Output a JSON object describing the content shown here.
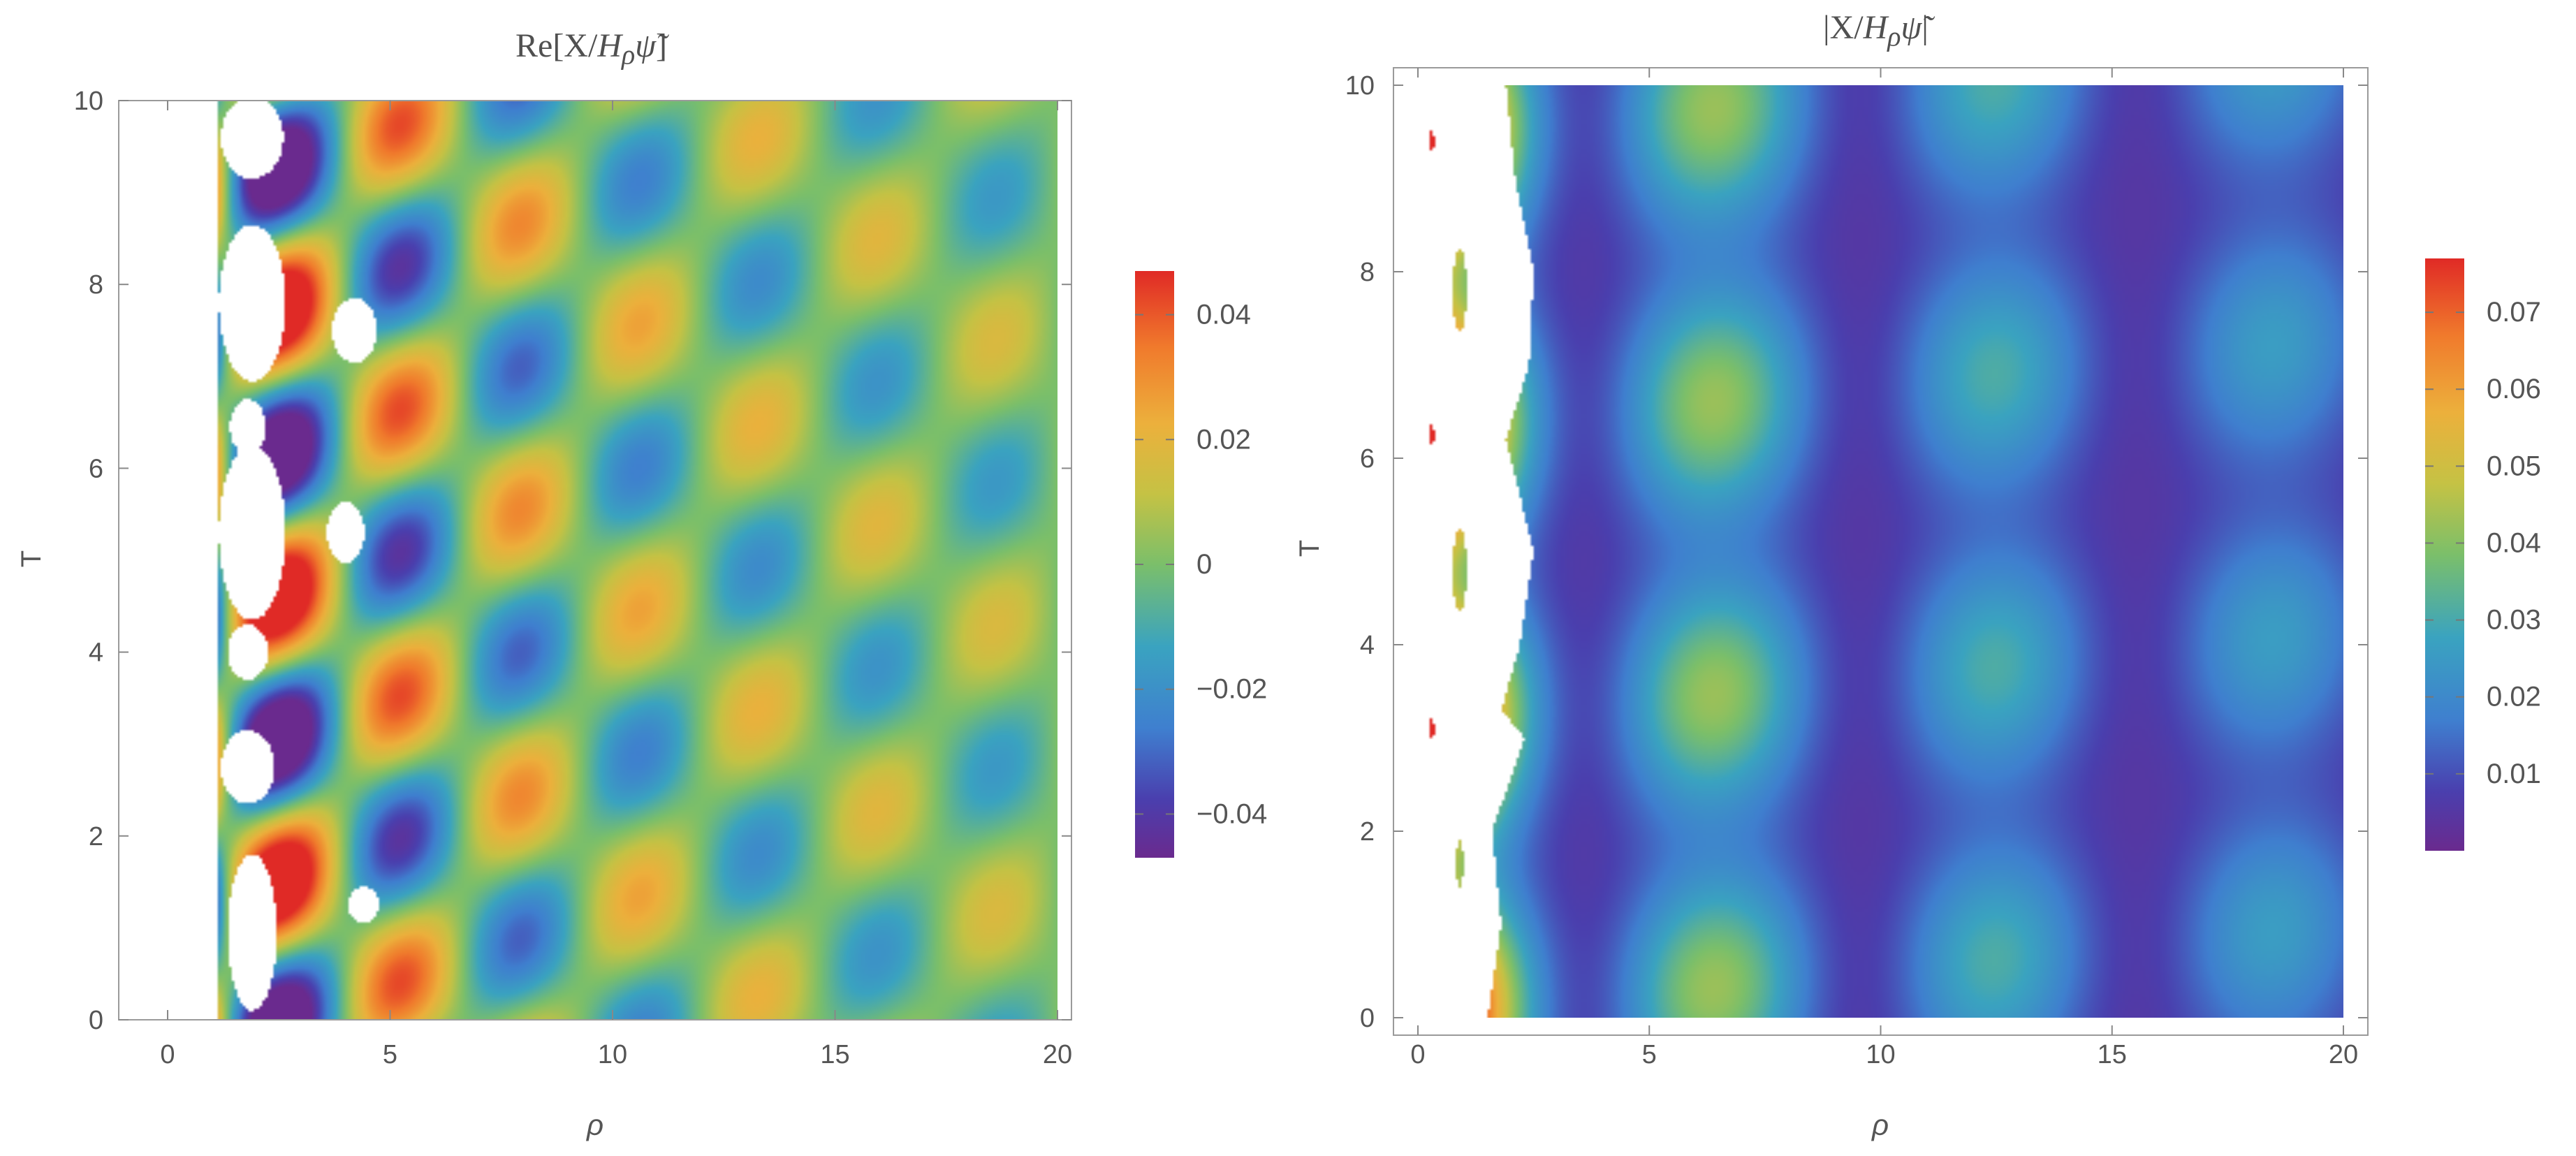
{
  "chart_data": [
    {
      "type": "heatmap",
      "title": {
        "prefix": "Re[X/",
        "H": "H",
        "sub": "ρ",
        "psi": "ψ̃",
        "suffix": "]"
      },
      "xlabel": "ρ",
      "ylabel": "T",
      "xlim": [
        0,
        20
      ],
      "ylim": [
        0,
        10
      ],
      "xticks": [
        0,
        5,
        10,
        15,
        20
      ],
      "yticks": [
        0,
        2,
        4,
        6,
        8,
        10
      ],
      "colorbar": {
        "range": [
          -0.047,
          0.047
        ],
        "ticks": [
          0.04,
          0.02,
          0,
          -0.02,
          -0.04
        ],
        "tick_labels": [
          "0.04",
          "0.02",
          "0",
          "−0.02",
          "−0.04"
        ]
      },
      "field_model": "real part of oscillating wave; values outside colorbar range are blank (white)",
      "blank_regions": [
        {
          "rho": 1.9,
          "T": 0.95,
          "rx": 0.55,
          "rT": 0.85
        },
        {
          "rho": 1.8,
          "T": 2.75,
          "rx": 0.6,
          "rT": 0.4
        },
        {
          "rho": 1.8,
          "T": 4.0,
          "rx": 0.45,
          "rT": 0.3
        },
        {
          "rho": 1.9,
          "T": 5.3,
          "rx": 0.75,
          "rT": 0.95
        },
        {
          "rho": 1.8,
          "T": 6.45,
          "rx": 0.4,
          "rT": 0.3
        },
        {
          "rho": 1.9,
          "T": 7.8,
          "rx": 0.75,
          "rT": 0.85
        },
        {
          "rho": 1.9,
          "T": 9.6,
          "rx": 0.7,
          "rT": 0.45
        },
        {
          "rho": 4.2,
          "T": 7.5,
          "rx": 0.5,
          "rT": 0.35
        },
        {
          "rho": 4.0,
          "T": 5.3,
          "rx": 0.42,
          "rT": 0.33
        },
        {
          "rho": 4.4,
          "T": 1.25,
          "rx": 0.35,
          "rT": 0.2
        }
      ]
    },
    {
      "type": "heatmap",
      "title": {
        "prefix": "|X/",
        "H": "H",
        "sub": "ρ",
        "psi": "ψ̃",
        "suffix": "|"
      },
      "xlabel": "ρ",
      "ylabel": "T",
      "xlim": [
        0,
        20
      ],
      "ylim": [
        0,
        10
      ],
      "xticks": [
        0,
        5,
        10,
        15,
        20
      ],
      "yticks": [
        0,
        2,
        4,
        6,
        8,
        10
      ],
      "colorbar": {
        "range": [
          0.0,
          0.077
        ],
        "ticks": [
          0.07,
          0.06,
          0.05,
          0.04,
          0.03,
          0.02,
          0.01
        ],
        "tick_labels": [
          "0.07",
          "0.06",
          "0.05",
          "0.04",
          "0.03",
          "0.02",
          "0.01"
        ]
      },
      "field_model": "magnitude of oscillating wave; values above colorbar range are blank (white)",
      "blank_boundary_rho": [
        [
          0,
          1.5
        ],
        [
          1,
          1.8
        ],
        [
          2,
          1.6
        ],
        [
          3,
          2.3
        ],
        [
          3.3,
          1.8
        ],
        [
          4,
          2.2
        ],
        [
          5,
          2.5
        ],
        [
          6.2,
          1.9
        ],
        [
          7,
          2.4
        ],
        [
          8,
          2.5
        ],
        [
          9,
          2.1
        ],
        [
          10,
          1.9
        ]
      ],
      "islands": [
        {
          "rho": 0.9,
          "T": 7.8,
          "rx": 0.15,
          "rT": 0.45
        },
        {
          "rho": 0.9,
          "T": 4.8,
          "rx": 0.15,
          "rT": 0.45
        },
        {
          "rho": 0.9,
          "T": 1.65,
          "rx": 0.08,
          "rT": 0.25
        },
        {
          "rho": 0.3,
          "T": 6.25,
          "rx": 0.05,
          "rT": 0.12
        },
        {
          "rho": 0.3,
          "T": 9.4,
          "rx": 0.05,
          "rT": 0.12
        },
        {
          "rho": 0.3,
          "T": 3.1,
          "rx": 0.05,
          "rT": 0.12
        }
      ]
    }
  ]
}
